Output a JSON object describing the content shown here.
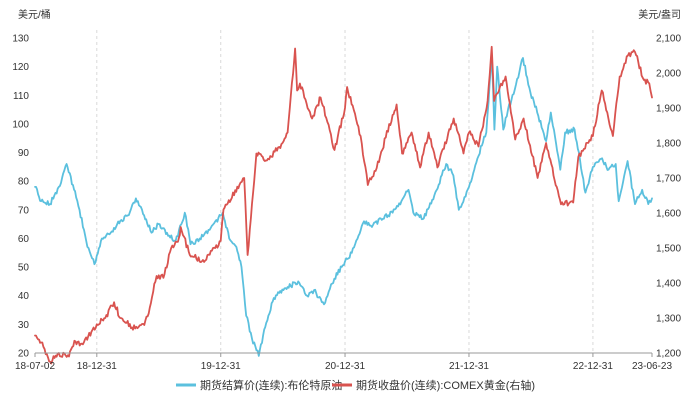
{
  "chart_data": {
    "type": "line",
    "left_unit": "美元/桶",
    "right_unit": "美元/盎司",
    "x_ticks": [
      "18-07-02",
      "18-12-31",
      "19-12-31",
      "20-12-31",
      "21-12-31",
      "22-12-31",
      "23-06-23"
    ],
    "y_left": {
      "min": 20,
      "max": 130,
      "ticks": [
        "20",
        "30",
        "40",
        "50",
        "60",
        "70",
        "80",
        "90",
        "100",
        "110",
        "120",
        "130"
      ]
    },
    "y_right": {
      "min": 1200,
      "max": 2100,
      "ticks": [
        "1,200",
        "1,300",
        "1,400",
        "1,500",
        "1,600",
        "1,700",
        "1,800",
        "1,900",
        "2,000",
        "2,100"
      ]
    },
    "grid": true,
    "legend_position": "bottom",
    "series": [
      {
        "name": "期货结算价(连续):布伦特原油",
        "axis": "left",
        "color": "#5bc0de",
        "points": [
          [
            "2018-07-02",
            78
          ],
          [
            "2018-07-20",
            73
          ],
          [
            "2018-08-15",
            72
          ],
          [
            "2018-09-10",
            78
          ],
          [
            "2018-10-03",
            86
          ],
          [
            "2018-10-25",
            77
          ],
          [
            "2018-11-10",
            70
          ],
          [
            "2018-11-30",
            59
          ],
          [
            "2018-12-24",
            51
          ],
          [
            "2018-12-31",
            54
          ],
          [
            "2019-01-15",
            60
          ],
          [
            "2019-02-10",
            62
          ],
          [
            "2019-03-01",
            65
          ],
          [
            "2019-04-01",
            68
          ],
          [
            "2019-04-25",
            74
          ],
          [
            "2019-05-10",
            71
          ],
          [
            "2019-06-10",
            62
          ],
          [
            "2019-07-01",
            65
          ],
          [
            "2019-08-01",
            61
          ],
          [
            "2019-08-20",
            59
          ],
          [
            "2019-09-16",
            69
          ],
          [
            "2019-10-03",
            58
          ],
          [
            "2019-10-30",
            60
          ],
          [
            "2019-11-25",
            63
          ],
          [
            "2019-12-31",
            68
          ],
          [
            "2020-01-06",
            69
          ],
          [
            "2020-01-25",
            60
          ],
          [
            "2020-02-15",
            57
          ],
          [
            "2020-03-01",
            50
          ],
          [
            "2020-03-15",
            33
          ],
          [
            "2020-04-01",
            25
          ],
          [
            "2020-04-21",
            19
          ],
          [
            "2020-05-10",
            29
          ],
          [
            "2020-06-01",
            38
          ],
          [
            "2020-06-20",
            41
          ],
          [
            "2020-07-15",
            43
          ],
          [
            "2020-08-15",
            45
          ],
          [
            "2020-09-10",
            40
          ],
          [
            "2020-10-01",
            42
          ],
          [
            "2020-10-30",
            37
          ],
          [
            "2020-11-20",
            44
          ],
          [
            "2020-12-31",
            52
          ],
          [
            "2021-01-20",
            55
          ],
          [
            "2021-02-25",
            66
          ],
          [
            "2021-03-20",
            64
          ],
          [
            "2021-04-15",
            67
          ],
          [
            "2021-05-20",
            69
          ],
          [
            "2021-06-15",
            73
          ],
          [
            "2021-07-06",
            77
          ],
          [
            "2021-07-20",
            69
          ],
          [
            "2021-08-20",
            67
          ],
          [
            "2021-09-20",
            75
          ],
          [
            "2021-10-25",
            86
          ],
          [
            "2021-11-15",
            82
          ],
          [
            "2021-12-01",
            70
          ],
          [
            "2021-12-31",
            78
          ],
          [
            "2022-01-25",
            88
          ],
          [
            "2022-02-20",
            97
          ],
          [
            "2022-03-08",
            124
          ],
          [
            "2022-03-16",
            98
          ],
          [
            "2022-03-24",
            120
          ],
          [
            "2022-04-11",
            98
          ],
          [
            "2022-04-25",
            105
          ],
          [
            "2022-05-15",
            112
          ],
          [
            "2022-06-08",
            123
          ],
          [
            "2022-06-30",
            111
          ],
          [
            "2022-07-20",
            104
          ],
          [
            "2022-08-15",
            94
          ],
          [
            "2022-08-29",
            104
          ],
          [
            "2022-09-26",
            84
          ],
          [
            "2022-10-10",
            97
          ],
          [
            "2022-11-07",
            98
          ],
          [
            "2022-12-09",
            76
          ],
          [
            "2022-12-31",
            85
          ],
          [
            "2023-01-27",
            88
          ],
          [
            "2023-02-15",
            84
          ],
          [
            "2023-03-08",
            86
          ],
          [
            "2023-03-17",
            73
          ],
          [
            "2023-04-12",
            87
          ],
          [
            "2023-05-04",
            72
          ],
          [
            "2023-05-25",
            77
          ],
          [
            "2023-06-12",
            72
          ],
          [
            "2023-06-23",
            74
          ]
        ]
      },
      {
        "name": "期货收盘价(连续):COMEX黄金(右轴)",
        "axis": "right",
        "color": "#d9534f",
        "points": [
          [
            "2018-07-02",
            1250
          ],
          [
            "2018-07-20",
            1230
          ],
          [
            "2018-08-16",
            1175
          ],
          [
            "2018-09-10",
            1200
          ],
          [
            "2018-10-10",
            1190
          ],
          [
            "2018-10-26",
            1235
          ],
          [
            "2018-11-20",
            1225
          ],
          [
            "2018-12-31",
            1282
          ],
          [
            "2019-01-25",
            1300
          ],
          [
            "2019-02-20",
            1345
          ],
          [
            "2019-03-10",
            1300
          ],
          [
            "2019-04-23",
            1270
          ],
          [
            "2019-05-20",
            1280
          ],
          [
            "2019-06-05",
            1330
          ],
          [
            "2019-06-25",
            1420
          ],
          [
            "2019-07-15",
            1415
          ],
          [
            "2019-08-07",
            1500
          ],
          [
            "2019-08-30",
            1530
          ],
          [
            "2019-09-04",
            1560
          ],
          [
            "2019-10-01",
            1480
          ],
          [
            "2019-11-12",
            1460
          ],
          [
            "2019-12-31",
            1520
          ],
          [
            "2020-01-08",
            1610
          ],
          [
            "2020-02-24",
            1680
          ],
          [
            "2020-03-09",
            1700
          ],
          [
            "2020-03-19",
            1480
          ],
          [
            "2020-04-14",
            1770
          ],
          [
            "2020-05-15",
            1750
          ],
          [
            "2020-06-30",
            1800
          ],
          [
            "2020-07-15",
            1830
          ],
          [
            "2020-08-06",
            2070
          ],
          [
            "2020-08-12",
            1950
          ],
          [
            "2020-08-20",
            1970
          ],
          [
            "2020-09-25",
            1870
          ],
          [
            "2020-10-20",
            1930
          ],
          [
            "2020-11-09",
            1860
          ],
          [
            "2020-11-30",
            1780
          ],
          [
            "2020-12-31",
            1900
          ],
          [
            "2021-01-06",
            1960
          ],
          [
            "2021-02-15",
            1820
          ],
          [
            "2021-03-08",
            1680
          ],
          [
            "2021-03-31",
            1720
          ],
          [
            "2021-05-20",
            1880
          ],
          [
            "2021-06-01",
            1910
          ],
          [
            "2021-06-17",
            1770
          ],
          [
            "2021-07-15",
            1830
          ],
          [
            "2021-08-09",
            1730
          ],
          [
            "2021-09-03",
            1830
          ],
          [
            "2021-09-29",
            1730
          ],
          [
            "2021-11-16",
            1870
          ],
          [
            "2021-12-15",
            1770
          ],
          [
            "2021-12-31",
            1830
          ],
          [
            "2022-01-28",
            1790
          ],
          [
            "2022-02-24",
            1920
          ],
          [
            "2022-03-08",
            2075
          ],
          [
            "2022-03-15",
            1920
          ],
          [
            "2022-04-18",
            1990
          ],
          [
            "2022-05-16",
            1810
          ],
          [
            "2022-06-10",
            1870
          ],
          [
            "2022-07-21",
            1700
          ],
          [
            "2022-08-15",
            1800
          ],
          [
            "2022-09-28",
            1625
          ],
          [
            "2022-11-03",
            1630
          ],
          [
            "2022-11-18",
            1760
          ],
          [
            "2022-12-31",
            1820
          ],
          [
            "2023-01-26",
            1950
          ],
          [
            "2023-02-28",
            1820
          ],
          [
            "2023-03-20",
            1990
          ],
          [
            "2023-04-13",
            2050
          ],
          [
            "2023-05-04",
            2060
          ],
          [
            "2023-05-30",
            1980
          ],
          [
            "2023-06-15",
            1970
          ],
          [
            "2023-06-23",
            1930
          ]
        ]
      }
    ]
  }
}
